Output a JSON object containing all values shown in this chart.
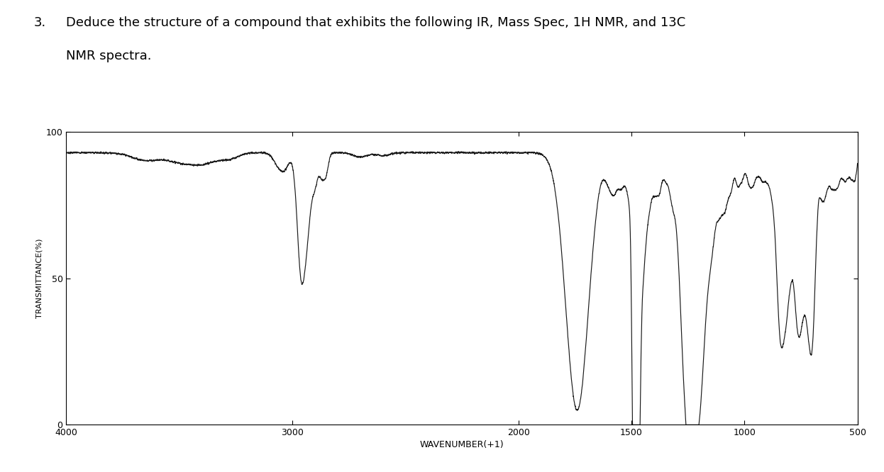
{
  "title_number": "3.",
  "title_text": "Deduce the structure of a compound that exhibits the following IR, Mass Spec, 1H NMR, and 13C",
  "title_text2": "NMR spectra.",
  "xlabel": "WAVENUMBER(+1)",
  "ylabel": "TRANSMITTANCE(%)",
  "xlim": [
    4000,
    500
  ],
  "ylim": [
    0,
    100
  ],
  "yticks": [
    0,
    50,
    100
  ],
  "xticks": [
    4000,
    3000,
    2000,
    1500,
    1000,
    500
  ],
  "background_color": "#ffffff",
  "line_color": "#1a1a1a",
  "plot_bg": "#ffffff",
  "title_fontsize": 13,
  "axis_fontsize": 8
}
